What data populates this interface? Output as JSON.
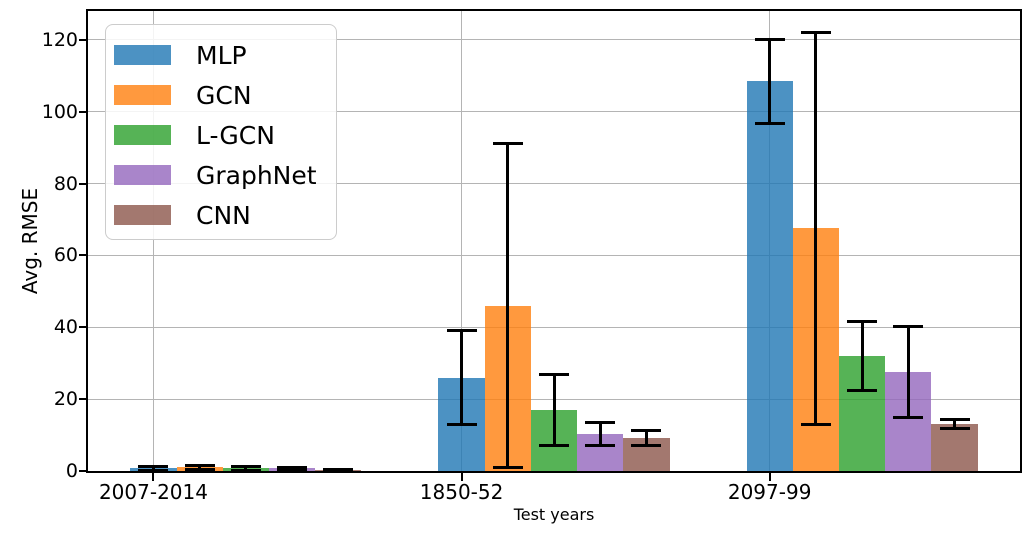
{
  "chart_data": {
    "type": "bar",
    "title": "",
    "xlabel": "Test years",
    "ylabel": "Avg. RMSE",
    "categories": [
      "2007-2014",
      "1850-52",
      "2097-99"
    ],
    "yticks": [
      0,
      20,
      40,
      60,
      80,
      100,
      120
    ],
    "ylim": [
      0,
      128
    ],
    "xlim": [
      -0.2125,
      2.8125
    ],
    "grid": true,
    "grid_color": "#b4b4b4",
    "axis_color": "#000000",
    "background_color": "#ffffff",
    "bar_alpha": 0.8,
    "bar_width_units": 0.15,
    "error_bars": true,
    "legend_position": "upper left",
    "series": [
      {
        "name": "MLP",
        "color": "#1f77b4",
        "values": [
          0.7,
          26.0,
          108.5
        ],
        "errors": [
          0.5,
          13.0,
          11.7
        ]
      },
      {
        "name": "GCN",
        "color": "#ff7f0e",
        "values": [
          1.0,
          46.0,
          67.5
        ],
        "errors": [
          0.6,
          45.0,
          54.5
        ]
      },
      {
        "name": "L-GCN",
        "color": "#2ca02c",
        "values": [
          0.7,
          17.0,
          32.0
        ],
        "errors": [
          0.5,
          9.8,
          9.6
        ]
      },
      {
        "name": "GraphNet",
        "color": "#9467bd",
        "values": [
          0.7,
          10.3,
          27.5
        ],
        "errors": [
          0.3,
          3.3,
          12.7
        ]
      },
      {
        "name": "CNN",
        "color": "#8c564b",
        "values": [
          0.15,
          9.1,
          13.0
        ],
        "errors": [
          0.2,
          2.1,
          1.3
        ]
      }
    ]
  }
}
